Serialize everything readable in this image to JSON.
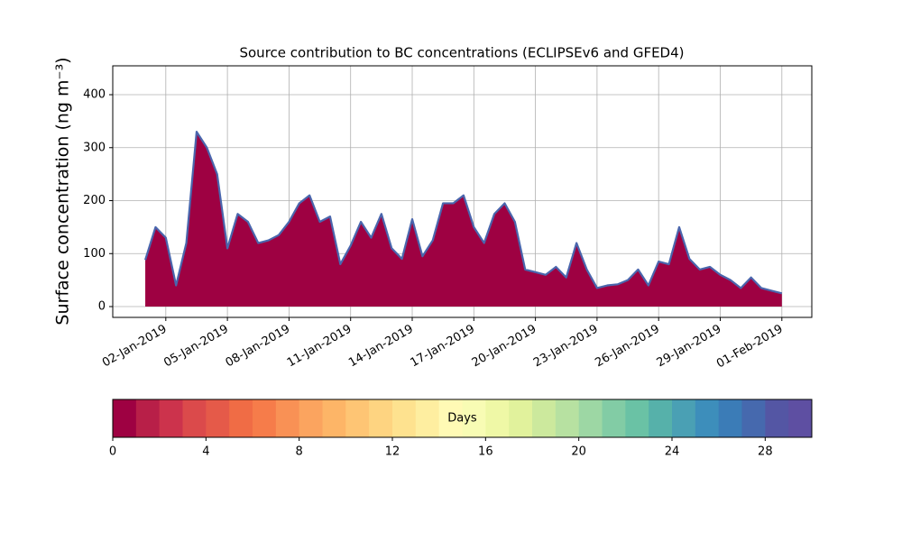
{
  "chart_data": {
    "type": "area",
    "title": "Source contribution to BC concentrations (ECLIPSEv6 and GFED4)",
    "y_label": "Surface concentration (ng m⁻³)",
    "x": [
      "2019-01-01T00:00Z",
      "2019-01-01T12:00Z",
      "2019-01-02T00:00Z",
      "2019-01-02T12:00Z",
      "2019-01-03T00:00Z",
      "2019-01-03T12:00Z",
      "2019-01-04T00:00Z",
      "2019-01-04T12:00Z",
      "2019-01-05T00:00Z",
      "2019-01-05T12:00Z",
      "2019-01-06T00:00Z",
      "2019-01-06T12:00Z",
      "2019-01-07T00:00Z",
      "2019-01-07T12:00Z",
      "2019-01-08T00:00Z",
      "2019-01-08T12:00Z",
      "2019-01-09T00:00Z",
      "2019-01-09T12:00Z",
      "2019-01-10T00:00Z",
      "2019-01-10T12:00Z",
      "2019-01-11T00:00Z",
      "2019-01-11T12:00Z",
      "2019-01-12T00:00Z",
      "2019-01-12T12:00Z",
      "2019-01-13T00:00Z",
      "2019-01-13T12:00Z",
      "2019-01-14T00:00Z",
      "2019-01-14T12:00Z",
      "2019-01-15T00:00Z",
      "2019-01-15T12:00Z",
      "2019-01-16T00:00Z",
      "2019-01-16T12:00Z",
      "2019-01-17T00:00Z",
      "2019-01-17T12:00Z",
      "2019-01-18T00:00Z",
      "2019-01-18T12:00Z",
      "2019-01-19T00:00Z",
      "2019-01-19T12:00Z",
      "2019-01-20T00:00Z",
      "2019-01-20T12:00Z",
      "2019-01-21T00:00Z",
      "2019-01-21T12:00Z",
      "2019-01-22T00:00Z",
      "2019-01-22T12:00Z",
      "2019-01-23T00:00Z",
      "2019-01-23T12:00Z",
      "2019-01-24T00:00Z",
      "2019-01-24T12:00Z",
      "2019-01-25T00:00Z",
      "2019-01-25T12:00Z",
      "2019-01-26T00:00Z",
      "2019-01-26T12:00Z",
      "2019-01-27T00:00Z",
      "2019-01-27T12:00Z",
      "2019-01-28T00:00Z",
      "2019-01-28T12:00Z",
      "2019-01-29T00:00Z",
      "2019-01-29T12:00Z",
      "2019-01-30T00:00Z",
      "2019-01-30T12:00Z",
      "2019-01-31T00:00Z",
      "2019-01-31T12:00Z",
      "2019-02-01T00:00Z"
    ],
    "values": [
      88,
      150,
      130,
      40,
      120,
      330,
      300,
      250,
      110,
      175,
      160,
      120,
      125,
      135,
      160,
      195,
      210,
      160,
      170,
      80,
      115,
      160,
      130,
      175,
      110,
      90,
      165,
      95,
      125,
      195,
      195,
      210,
      150,
      120,
      175,
      195,
      160,
      70,
      65,
      60,
      75,
      55,
      120,
      70,
      35,
      40,
      42,
      50,
      70,
      40,
      85,
      80,
      150,
      90,
      70,
      75,
      60,
      50,
      35,
      55,
      35,
      30,
      25
    ],
    "color": "#9e0142",
    "line_color": "#4a66ad",
    "xlim": [
      "2018-12-30T10:00Z",
      "2019-02-02T11:00Z"
    ],
    "xticks": [
      {
        "value": "2019-01-02T00:00Z",
        "label": "02-Jan-2019"
      },
      {
        "value": "2019-01-05T00:00Z",
        "label": "05-Jan-2019"
      },
      {
        "value": "2019-01-08T00:00Z",
        "label": "08-Jan-2019"
      },
      {
        "value": "2019-01-11T00:00Z",
        "label": "11-Jan-2019"
      },
      {
        "value": "2019-01-14T00:00Z",
        "label": "14-Jan-2019"
      },
      {
        "value": "2019-01-17T00:00Z",
        "label": "17-Jan-2019"
      },
      {
        "value": "2019-01-20T00:00Z",
        "label": "20-Jan-2019"
      },
      {
        "value": "2019-01-23T00:00Z",
        "label": "23-Jan-2019"
      },
      {
        "value": "2019-01-26T00:00Z",
        "label": "26-Jan-2019"
      },
      {
        "value": "2019-01-29T00:00Z",
        "label": "29-Jan-2019"
      },
      {
        "value": "2019-02-01T00:00Z",
        "label": "01-Feb-2019"
      }
    ],
    "ylim": [
      -20.4,
      454.5
    ],
    "yticks": [
      0,
      100,
      200,
      300,
      400
    ],
    "grid": true,
    "colorbar": {
      "label": "Days",
      "lim": [
        0,
        30
      ],
      "ticks": [
        0,
        4,
        8,
        12,
        16,
        20,
        24,
        28
      ],
      "colors": [
        "#9e0142",
        "#b81f48",
        "#cc334c",
        "#db4a4b",
        "#e55a49",
        "#f06c45",
        "#f67c4a",
        "#f99155",
        "#fba45f",
        "#fdb567",
        "#fec574",
        "#fed481",
        "#fee28f",
        "#feeea0",
        "#fffab5",
        "#f8fcb4",
        "#eff8a6",
        "#e1f29c",
        "#cce99d",
        "#b7e1a1",
        "#9dd7a4",
        "#82cca5",
        "#6ac2a5",
        "#56b1aa",
        "#4aa0b4",
        "#3d8ebb",
        "#3b7cb7",
        "#4669ae",
        "#5456a4",
        "#5e4fa2"
      ]
    }
  }
}
